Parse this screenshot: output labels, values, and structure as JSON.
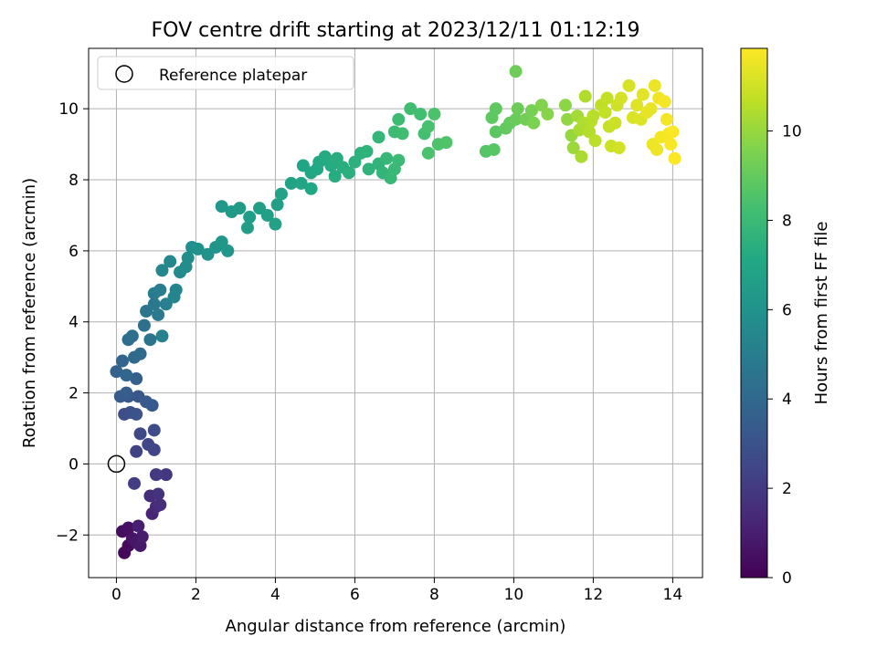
{
  "chart_data": {
    "type": "scatter",
    "title": "FOV centre drift starting at 2023/12/11 01:12:19",
    "xlabel": "Angular distance from reference (arcmin)",
    "ylabel": "Rotation from reference (arcmin)",
    "xlim": [
      -0.7,
      14.75
    ],
    "ylim": [
      -3.2,
      11.7
    ],
    "xticks": [
      0,
      2,
      4,
      6,
      8,
      10,
      12,
      14
    ],
    "yticks": [
      -2,
      0,
      2,
      4,
      6,
      8,
      10
    ],
    "xtick_labels": [
      "0",
      "2",
      "4",
      "6",
      "8",
      "10",
      "12",
      "14"
    ],
    "ytick_labels": [
      "−2",
      "0",
      "2",
      "4",
      "6",
      "8",
      "10"
    ],
    "grid": true,
    "legend": {
      "placement": "upper-left",
      "label": "Reference platepar"
    },
    "reference_point": {
      "x": 0,
      "y": 0
    },
    "colorbar": {
      "label": "Hours from first FF file",
      "colormap": "viridis",
      "range": [
        0,
        11.85
      ],
      "ticks": [
        0,
        2,
        4,
        6,
        8,
        10
      ],
      "tick_labels": [
        "0",
        "2",
        "4",
        "6",
        "8",
        "10"
      ]
    },
    "points": [
      [
        0.2,
        -2.5,
        0.2
      ],
      [
        0.3,
        -2.3,
        0.3
      ],
      [
        0.15,
        -1.9,
        0.4
      ],
      [
        0.3,
        -1.8,
        0.5
      ],
      [
        0.4,
        -2.1,
        0.6
      ],
      [
        0.5,
        -2.2,
        0.7
      ],
      [
        0.6,
        -2.3,
        0.8
      ],
      [
        0.65,
        -2.05,
        0.9
      ],
      [
        0.55,
        -1.75,
        1.0
      ],
      [
        0.9,
        -1.4,
        1.2
      ],
      [
        1.0,
        -1.2,
        1.4
      ],
      [
        0.85,
        -0.9,
        1.5
      ],
      [
        1.1,
        -1.15,
        1.6
      ],
      [
        1.05,
        -0.85,
        1.7
      ],
      [
        1.25,
        -0.3,
        1.9
      ],
      [
        1.0,
        -0.3,
        2.0
      ],
      [
        0.45,
        -0.55,
        2.1
      ],
      [
        0.5,
        0.35,
        2.3
      ],
      [
        0.95,
        0.4,
        2.4
      ],
      [
        0.8,
        0.55,
        2.5
      ],
      [
        0.6,
        0.85,
        2.6
      ],
      [
        0.95,
        0.95,
        2.7
      ],
      [
        0.2,
        1.4,
        2.8
      ],
      [
        0.35,
        1.45,
        2.9
      ],
      [
        0.5,
        1.4,
        3.0
      ],
      [
        0.3,
        1.9,
        3.1
      ],
      [
        0.55,
        1.9,
        3.2
      ],
      [
        0.75,
        1.75,
        3.3
      ],
      [
        0.9,
        1.65,
        3.35
      ],
      [
        0.1,
        1.9,
        3.4
      ],
      [
        0.25,
        2.0,
        3.5
      ],
      [
        0.5,
        2.4,
        3.6
      ],
      [
        0.0,
        2.6,
        3.7
      ],
      [
        0.15,
        2.9,
        3.8
      ],
      [
        0.25,
        2.5,
        3.9
      ],
      [
        0.45,
        3.0,
        4.0
      ],
      [
        0.6,
        3.1,
        4.1
      ],
      [
        0.3,
        3.5,
        4.2
      ],
      [
        0.4,
        3.6,
        4.3
      ],
      [
        0.7,
        3.9,
        4.4
      ],
      [
        0.85,
        3.5,
        4.5
      ],
      [
        0.75,
        4.3,
        4.6
      ],
      [
        0.95,
        4.5,
        4.7
      ],
      [
        1.05,
        4.2,
        4.8
      ],
      [
        0.95,
        4.8,
        4.9
      ],
      [
        1.1,
        4.9,
        5.0
      ],
      [
        1.25,
        4.5,
        5.1
      ],
      [
        1.15,
        3.6,
        5.2
      ],
      [
        1.45,
        4.7,
        5.3
      ],
      [
        1.5,
        4.9,
        5.35
      ],
      [
        1.15,
        5.45,
        5.4
      ],
      [
        1.35,
        5.7,
        5.5
      ],
      [
        1.6,
        5.4,
        5.6
      ],
      [
        1.75,
        5.55,
        5.7
      ],
      [
        1.8,
        5.8,
        5.8
      ],
      [
        1.9,
        6.1,
        5.9
      ],
      [
        2.05,
        6.05,
        6.0
      ],
      [
        2.3,
        5.9,
        6.05
      ],
      [
        2.5,
        6.1,
        6.1
      ],
      [
        2.65,
        6.25,
        6.2
      ],
      [
        2.8,
        6.0,
        6.25
      ],
      [
        2.65,
        7.25,
        6.3
      ],
      [
        2.9,
        7.1,
        6.4
      ],
      [
        3.1,
        7.2,
        6.45
      ],
      [
        3.35,
        6.95,
        6.5
      ],
      [
        3.3,
        6.65,
        6.55
      ],
      [
        3.6,
        7.2,
        6.6
      ],
      [
        3.8,
        7.0,
        6.65
      ],
      [
        4.05,
        7.3,
        6.7
      ],
      [
        4.0,
        6.75,
        6.75
      ],
      [
        4.15,
        7.6,
        6.8
      ],
      [
        4.4,
        7.9,
        6.85
      ],
      [
        4.65,
        7.9,
        6.9
      ],
      [
        4.7,
        8.4,
        6.95
      ],
      [
        4.9,
        8.2,
        7.0
      ],
      [
        4.9,
        7.75,
        7.05
      ],
      [
        5.05,
        8.3,
        7.1
      ],
      [
        5.1,
        8.5,
        7.15
      ],
      [
        5.25,
        8.65,
        7.2
      ],
      [
        5.4,
        8.4,
        7.25
      ],
      [
        5.5,
        8.1,
        7.3
      ],
      [
        5.55,
        8.6,
        7.35
      ],
      [
        5.7,
        8.35,
        7.4
      ],
      [
        5.85,
        8.2,
        7.45
      ],
      [
        6.0,
        8.5,
        7.5
      ],
      [
        6.15,
        8.75,
        7.55
      ],
      [
        6.3,
        8.8,
        7.6
      ],
      [
        6.35,
        8.3,
        7.65
      ],
      [
        6.6,
        8.45,
        7.7
      ],
      [
        6.7,
        8.2,
        7.75
      ],
      [
        6.6,
        9.2,
        7.8
      ],
      [
        6.8,
        8.6,
        7.85
      ],
      [
        6.9,
        8.05,
        7.9
      ],
      [
        7.0,
        8.3,
        7.95
      ],
      [
        7.1,
        8.55,
        8.0
      ],
      [
        7.0,
        9.35,
        8.05
      ],
      [
        7.1,
        9.7,
        8.1
      ],
      [
        7.2,
        9.3,
        8.15
      ],
      [
        7.4,
        10.0,
        8.2
      ],
      [
        7.65,
        9.85,
        8.25
      ],
      [
        7.75,
        9.3,
        8.3
      ],
      [
        7.85,
        9.5,
        8.35
      ],
      [
        7.85,
        8.75,
        8.4
      ],
      [
        8.0,
        9.85,
        8.45
      ],
      [
        8.1,
        9.0,
        8.5
      ],
      [
        8.3,
        9.05,
        8.55
      ],
      [
        9.3,
        8.8,
        8.7
      ],
      [
        9.5,
        8.85,
        8.75
      ],
      [
        9.55,
        9.35,
        8.8
      ],
      [
        9.45,
        9.75,
        8.85
      ],
      [
        9.55,
        10.0,
        8.9
      ],
      [
        9.8,
        9.45,
        8.95
      ],
      [
        9.9,
        9.6,
        9.0
      ],
      [
        10.05,
        9.7,
        9.1
      ],
      [
        10.1,
        10.0,
        9.15
      ],
      [
        10.05,
        11.05,
        9.2
      ],
      [
        10.3,
        9.7,
        9.3
      ],
      [
        10.45,
        9.95,
        9.4
      ],
      [
        10.5,
        9.6,
        9.5
      ],
      [
        10.7,
        10.1,
        9.6
      ],
      [
        10.85,
        9.85,
        9.7
      ],
      [
        11.3,
        10.1,
        9.8
      ],
      [
        11.35,
        9.7,
        9.9
      ],
      [
        11.45,
        9.25,
        10.0
      ],
      [
        11.5,
        8.9,
        10.1
      ],
      [
        11.6,
        9.8,
        10.2
      ],
      [
        11.65,
        9.4,
        10.3
      ],
      [
        11.7,
        8.65,
        10.35
      ],
      [
        11.75,
        9.6,
        10.4
      ],
      [
        11.8,
        10.35,
        10.45
      ],
      [
        11.9,
        9.35,
        10.5
      ],
      [
        11.95,
        9.65,
        10.55
      ],
      [
        12.0,
        9.8,
        10.6
      ],
      [
        12.05,
        9.1,
        10.65
      ],
      [
        12.2,
        10.1,
        10.7
      ],
      [
        12.3,
        9.9,
        10.75
      ],
      [
        12.35,
        10.3,
        10.8
      ],
      [
        12.4,
        9.5,
        10.85
      ],
      [
        12.45,
        8.95,
        10.9
      ],
      [
        12.55,
        9.6,
        10.95
      ],
      [
        12.6,
        10.1,
        11.0
      ],
      [
        12.65,
        8.9,
        11.05
      ],
      [
        12.7,
        10.3,
        11.1
      ],
      [
        12.9,
        10.65,
        11.15
      ],
      [
        13.0,
        9.75,
        11.2
      ],
      [
        13.1,
        10.1,
        11.25
      ],
      [
        13.2,
        9.7,
        11.3
      ],
      [
        13.25,
        10.4,
        11.35
      ],
      [
        13.35,
        9.9,
        11.4
      ],
      [
        13.45,
        10.0,
        11.45
      ],
      [
        13.5,
        9.0,
        11.5
      ],
      [
        13.55,
        10.65,
        11.5
      ],
      [
        13.6,
        8.85,
        11.55
      ],
      [
        13.65,
        10.3,
        11.6
      ],
      [
        13.7,
        9.2,
        11.65
      ],
      [
        13.8,
        10.2,
        11.7
      ],
      [
        13.85,
        9.7,
        11.7
      ],
      [
        13.9,
        9.3,
        11.75
      ],
      [
        13.95,
        9.0,
        11.78
      ],
      [
        14.0,
        9.35,
        11.8
      ],
      [
        14.05,
        8.6,
        11.82
      ]
    ]
  }
}
